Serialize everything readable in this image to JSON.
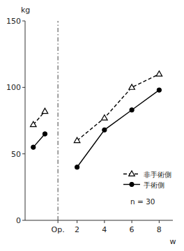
{
  "chart_data": {
    "type": "line",
    "x": [
      -1.2,
      -0.35,
      0.6,
      2,
      4,
      6,
      8
    ],
    "series": [
      {
        "name": "非手術側",
        "color": "#000000",
        "marker": "open-triangle",
        "line_style": "dashed",
        "values": [
          72,
          82,
          null,
          60,
          77,
          100,
          110
        ]
      },
      {
        "name": "手術側",
        "color": "#000000",
        "marker": "circle",
        "line_style": "solid",
        "values": [
          55,
          65,
          null,
          40,
          68,
          83,
          98
        ]
      }
    ],
    "vline": 0.6,
    "xlim": [
      -1.8,
      9.0
    ],
    "xticks": [
      {
        "value": 0.6,
        "label": "Op."
      },
      2,
      4,
      6,
      8
    ],
    "ylim": [
      0,
      150
    ],
    "yticks": [
      0,
      50,
      100,
      150
    ],
    "x_label": "w",
    "y_label": "kg",
    "annotations": [
      {
        "text": "n = 30",
        "x": 6.8,
        "y": 12
      }
    ],
    "legend": "lower-right",
    "grid": false
  }
}
